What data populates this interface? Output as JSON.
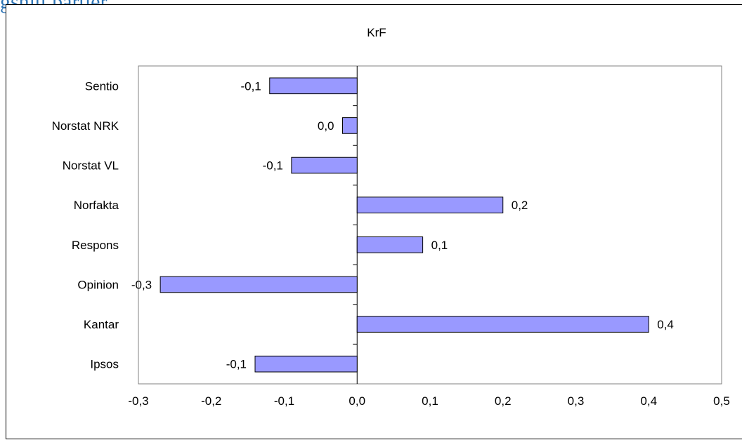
{
  "page_title": "gsnitt partier",
  "chart_data": {
    "type": "bar",
    "orientation": "horizontal",
    "title": "KrF",
    "categories": [
      "Sentio",
      "Norstat NRK",
      "Norstat VL",
      "Norfakta",
      "Respons",
      "Opinion",
      "Kantar",
      "Ipsos"
    ],
    "values": [
      -0.12,
      -0.02,
      -0.09,
      0.2,
      0.09,
      -0.27,
      0.4,
      -0.14
    ],
    "value_labels": [
      "-0,1",
      "0,0",
      "-0,1",
      "0,2",
      "0,1",
      "-0,3",
      "0,4",
      "-0,1"
    ],
    "xlim": [
      -0.3,
      0.5
    ],
    "xticks": [
      -0.3,
      -0.2,
      -0.1,
      0.0,
      0.1,
      0.2,
      0.3,
      0.4,
      0.5
    ],
    "xtick_labels": [
      "-0,3",
      "-0,2",
      "-0,1",
      "0,0",
      "0,1",
      "0,2",
      "0,3",
      "0,4",
      "0,5"
    ],
    "xlabel": "",
    "ylabel": "",
    "grid": false,
    "legend": false,
    "colors": {
      "bar_fill": "#9999ff",
      "bar_stroke": "#000000",
      "plot_border": "#808080"
    }
  }
}
